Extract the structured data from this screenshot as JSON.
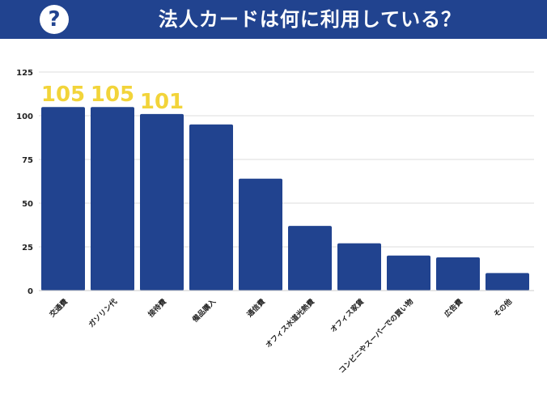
{
  "header": {
    "icon": "question-circle-icon",
    "title": "法人カードは何に利用している？"
  },
  "colors": {
    "header_bg": "#21438f",
    "bar": "#21438f",
    "data_label": "#f2d43a",
    "grid": "#dddddd"
  },
  "chart_data": {
    "type": "bar",
    "title": "法人カードは何に利用している？",
    "xlabel": "",
    "ylabel": "",
    "ylim": [
      0,
      125
    ],
    "yticks": [
      0,
      25,
      50,
      75,
      100,
      125
    ],
    "grid": true,
    "categories": [
      "交通費",
      "ガソリン代",
      "接待費",
      "備品購入",
      "通信費",
      "オフィス水道光熱費",
      "オフィス家賃",
      "コンビニやスーパーでの買い物",
      "広告費",
      "その他"
    ],
    "values": [
      105,
      105,
      101,
      95,
      64,
      37,
      27,
      20,
      19,
      10
    ],
    "data_labels": [
      "105",
      "105",
      "101",
      null,
      null,
      null,
      null,
      null,
      null,
      null
    ]
  }
}
